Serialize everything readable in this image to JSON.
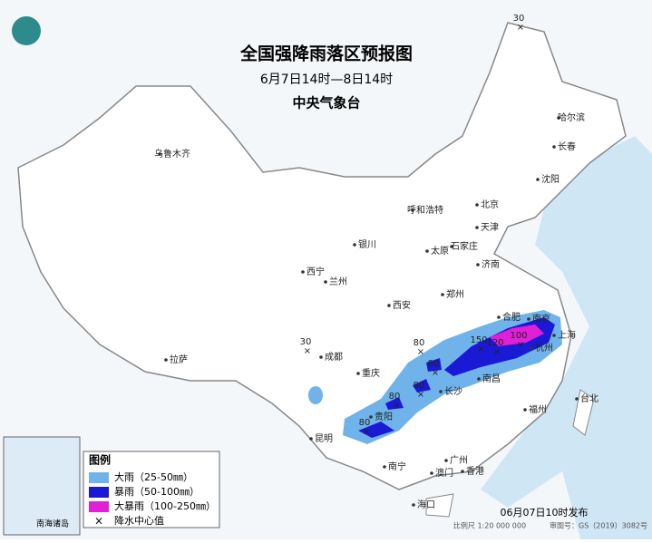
{
  "header": {
    "title": "全国强降雨落区预报图",
    "subtitle": "6月7日14时—8日14时",
    "agency": "中央气象台"
  },
  "cities": [
    "乌鲁木齐",
    "哈尔滨",
    "长春",
    "沈阳",
    "北京",
    "天津",
    "呼和浩特",
    "银川",
    "石家庄",
    "太原",
    "济南",
    "西宁",
    "兰州",
    "郑州",
    "西安",
    "合肥",
    "南京",
    "上海",
    "杭州",
    "成都",
    "重庆",
    "南昌",
    "长沙",
    "福州",
    "拉萨",
    "贵阳",
    "昆明",
    "南宁",
    "广州",
    "澳门",
    "香港",
    "海口",
    "台北"
  ],
  "centers": [
    30,
    30,
    80,
    80,
    80,
    80,
    80,
    150,
    120,
    100
  ],
  "legend": {
    "title": "图例",
    "items": [
      "大雨（25-50㎜）",
      "暴雨（50-100㎜）",
      "大暴雨（100-250㎜）",
      "降水中心值"
    ]
  },
  "inset": "南海诸岛",
  "footer": {
    "issued": "06月07日10时发布",
    "scale": "比例尺 1:20 000 000",
    "approval": "审图号：GS（2019）3082号"
  }
}
